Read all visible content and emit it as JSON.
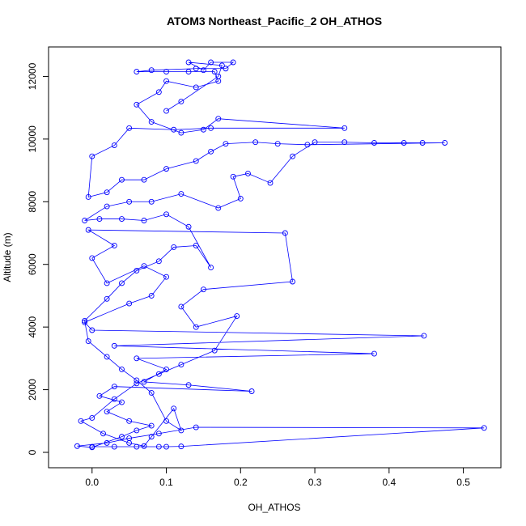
{
  "chart_data": {
    "type": "line",
    "title": "ATOM3 Northeast_Pacific_2 OH_ATHOS",
    "xlabel": "OH_ATHOS",
    "ylabel": "Altitude (m)",
    "color": "#0000ff",
    "xlim": [
      -0.0586,
      0.5506
    ],
    "ylim": [
      -491,
      12941
    ],
    "xticks": [
      {
        "value": 0,
        "label": "0.0"
      },
      0.1,
      0.2,
      0.3,
      0.4,
      0.5
    ],
    "yticks": [
      0,
      2000,
      4000,
      6000,
      8000,
      10000,
      12000
    ],
    "x": [
      0.0,
      0.03,
      0.06,
      0.09,
      0.1,
      0.12,
      0.528,
      0.14,
      0.09,
      0.05,
      0.02,
      -0.02,
      0.0,
      0.04,
      0.06,
      0.08,
      0.05,
      0.02,
      0.04,
      0.01,
      0.03,
      0.215,
      0.13,
      0.07,
      0.1,
      0.06,
      0.38,
      0.03,
      0.447,
      0.0,
      -0.01,
      0.05,
      0.08,
      0.1,
      0.07,
      0.02,
      0.0,
      0.03,
      -0.005,
      0.26,
      0.27,
      0.15,
      0.12,
      0.14,
      0.195,
      0.165,
      0.12,
      0.09,
      0.06,
      0.03,
      0.0,
      -0.015,
      0.015,
      0.05,
      0.07,
      0.08,
      0.11,
      0.12,
      0.1,
      0.08,
      0.06,
      0.04,
      0.02,
      -0.005,
      -0.01,
      0.02,
      0.04,
      0.06,
      0.09,
      0.11,
      0.14,
      0.16,
      0.13,
      0.1,
      0.07,
      0.04,
      0.01,
      -0.01,
      0.02,
      0.05,
      0.08,
      0.12,
      0.17,
      0.2,
      0.19,
      0.21,
      0.24,
      0.27,
      0.3,
      0.34,
      0.38,
      0.42,
      0.445,
      0.475,
      0.29,
      0.25,
      0.22,
      0.18,
      0.16,
      0.14,
      0.1,
      0.07,
      0.04,
      0.02,
      -0.005,
      0.0,
      0.03,
      0.05,
      0.11,
      0.16,
      0.34,
      0.17,
      0.15,
      0.12,
      0.08,
      0.06,
      0.09,
      0.1,
      0.14,
      0.17,
      0.165,
      0.13,
      0.1,
      0.06,
      0.08,
      0.14,
      0.18,
      0.19,
      0.16,
      0.15,
      0.13,
      0.175,
      0.17,
      0.12,
      0.1
    ],
    "values": [
      180,
      180,
      180,
      180,
      180,
      190,
      780,
      800,
      600,
      450,
      300,
      200,
      160,
      500,
      700,
      850,
      1000,
      1300,
      1600,
      1800,
      2100,
      1950,
      2150,
      2250,
      2650,
      3000,
      3150,
      3400,
      3720,
      3900,
      4150,
      4750,
      5000,
      5600,
      5950,
      5400,
      6200,
      6600,
      7100,
      7000,
      5450,
      5200,
      4650,
      4000,
      4350,
      3250,
      2800,
      2500,
      2200,
      1700,
      1100,
      1000,
      600,
      300,
      200,
      500,
      1400,
      700,
      1000,
      1900,
      2300,
      2650,
      3050,
      3550,
      4200,
      4900,
      5400,
      5800,
      6100,
      6550,
      6600,
      5900,
      7200,
      7600,
      7400,
      7450,
      7450,
      7400,
      7850,
      8000,
      8000,
      8250,
      7800,
      8100,
      8800,
      8900,
      8600,
      9450,
      9900,
      9900,
      9880,
      9880,
      9880,
      9880,
      9820,
      9850,
      9900,
      9850,
      9600,
      9300,
      9050,
      8700,
      8700,
      8300,
      8150,
      9450,
      9800,
      10350,
      10300,
      10350,
      10350,
      10650,
      10300,
      10200,
      10550,
      11100,
      11500,
      11850,
      11650,
      11850,
      12150,
      12150,
      12150,
      12150,
      12200,
      12250,
      12250,
      12450,
      12450,
      12200,
      12450,
      12350,
      12000,
      11200,
      10900
    ]
  }
}
